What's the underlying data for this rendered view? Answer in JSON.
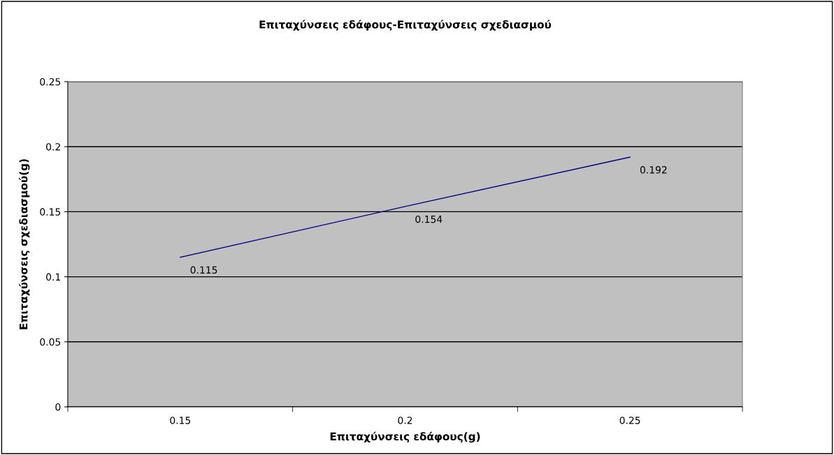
{
  "chart_data": {
    "type": "line",
    "title": "Επιταχύνσεις εδάφους-Επιταχύνσεις σχεδιασμού",
    "xlabel": "Επιταχύνσεις εδάφους(g)",
    "ylabel": "Επιταχύνσεις σχεδιασμού(g)",
    "categories": [
      "0.15",
      "0.2",
      "0.25"
    ],
    "series": [
      {
        "color": "#000080",
        "values": [
          0.115,
          0.154,
          0.192
        ]
      }
    ],
    "ylim": [
      0,
      0.25
    ],
    "yticks": [
      0,
      0.05,
      0.1,
      0.15,
      0.2,
      0.25
    ],
    "grid": "y",
    "data_labels": true,
    "marker": "none",
    "line_style": "solid"
  }
}
